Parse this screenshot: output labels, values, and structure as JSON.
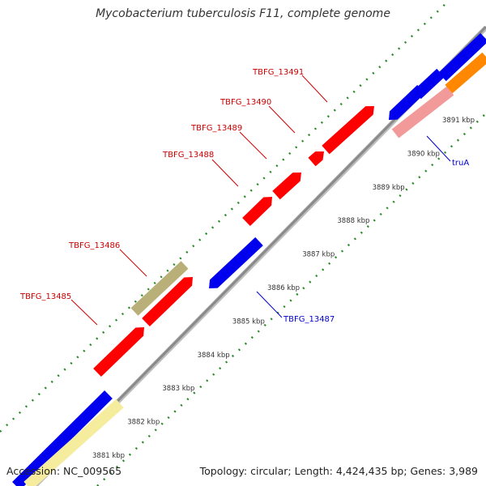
{
  "title": "Mycobacterium tuberculosis F11, complete genome",
  "footer": {
    "accession": "Accession: NC_009565",
    "summary": "Topology: circular; Length: 4,424,435 bp; Genes: 3,989"
  },
  "colors": {
    "backbone": "#8a8a8a",
    "dots": "#2a8a2a",
    "label_top": "#cc0000",
    "label_bottom": "#0000cc"
  },
  "ticks": [
    "3881 kbp",
    "3882 kbp",
    "3883 kbp",
    "3884 kbp",
    "3885 kbp",
    "3886 kbp",
    "3887 kbp",
    "3888 kbp",
    "3889 kbp",
    "3890 kbp",
    "3891 kbp"
  ],
  "genes": [
    {
      "label": "TBFG_13485",
      "color": "#ff0000",
      "track": "plus"
    },
    {
      "label": "TBFG_13486",
      "color": "#b8b078",
      "track": "plus-outer"
    },
    {
      "label": "TBFG_13487",
      "color": "#0000ee",
      "track": "minus"
    },
    {
      "label": "TBFG_13488",
      "color": "#ff0000",
      "track": "plus"
    },
    {
      "label": "TBFG_13489",
      "color": "#ff0000",
      "track": "plus"
    },
    {
      "label": "TBFG_13490",
      "color": "#ff0000",
      "track": "plus"
    },
    {
      "label": "TBFG_13491",
      "color": "#ff0000",
      "track": "plus"
    },
    {
      "label": "truA",
      "color": "#f29a9a",
      "track": "minus-outer"
    }
  ]
}
